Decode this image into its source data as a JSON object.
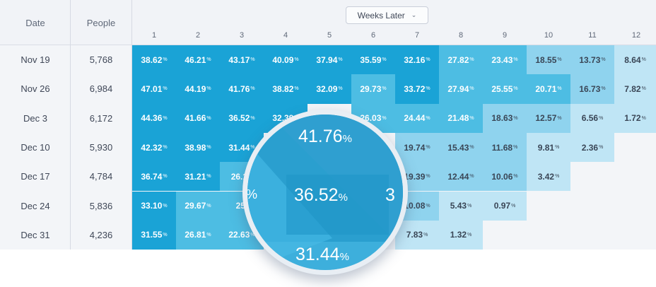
{
  "header": {
    "date_label": "Date",
    "people_label": "People",
    "weeks_later_label": "Weeks Later",
    "weeks": [
      "1",
      "2",
      "3",
      "4",
      "5",
      "6",
      "7",
      "8",
      "9",
      "10",
      "11",
      "12"
    ]
  },
  "rows": [
    {
      "date": "Nov 19",
      "people": "5,768",
      "values": [
        "38.62",
        "46.21",
        "43.17",
        "40.09",
        "37.94",
        "35.59",
        "32.16",
        "27.82",
        "23.43",
        "18.55",
        "13.73",
        "8.64"
      ]
    },
    {
      "date": "Nov 26",
      "people": "6,984",
      "values": [
        "47.01",
        "44.19",
        "41.76",
        "38.82",
        "32.09",
        "29.73",
        "33.72",
        "27.94",
        "25.55",
        "20.71",
        "16.73",
        "7.82"
      ]
    },
    {
      "date": "Dec 3",
      "people": "6,172",
      "values": [
        "44.36",
        "41.66",
        "36.52",
        "32.39",
        "",
        "26.03",
        "24.44",
        "21.48",
        "18.63",
        "12.57",
        "6.56",
        "1.72"
      ]
    },
    {
      "date": "Dec 10",
      "people": "5,930",
      "values": [
        "42.32",
        "38.98",
        "31.44",
        "",
        "",
        "",
        "19.74",
        "15.43",
        "11.68",
        "9.81",
        "2.36",
        ""
      ]
    },
    {
      "date": "Dec 17",
      "people": "4,784",
      "values": [
        "36.74",
        "31.21",
        "26.1",
        "",
        "",
        "",
        "19.39",
        "12.44",
        "10.06",
        "3.42",
        "",
        ""
      ]
    },
    {
      "date": "Dec 24",
      "people": "5,836",
      "values": [
        "33.10",
        "29.67",
        "25.",
        "",
        "",
        "",
        "10.08",
        "5.43",
        "0.97",
        "",
        "",
        ""
      ]
    },
    {
      "date": "Dec 31",
      "people": "4,236",
      "values": [
        "31.55",
        "26.81",
        "22.63",
        "",
        "",
        "",
        "7.83",
        "1.32",
        "",
        "",
        "",
        ""
      ]
    }
  ],
  "percent_sign": "%",
  "magnifier": {
    "top_value": "41.76",
    "center_value": "36.52",
    "bottom_value": "31.44",
    "left_fragment": "%",
    "right_fragment": "3"
  },
  "colors": {
    "dark": "#1aa3d6",
    "mid": "#4dbde3",
    "light": "#8fd3ee",
    "pale": "#bfe5f5",
    "text_dark": "#ffffff",
    "text_light": "#3a4656"
  }
}
